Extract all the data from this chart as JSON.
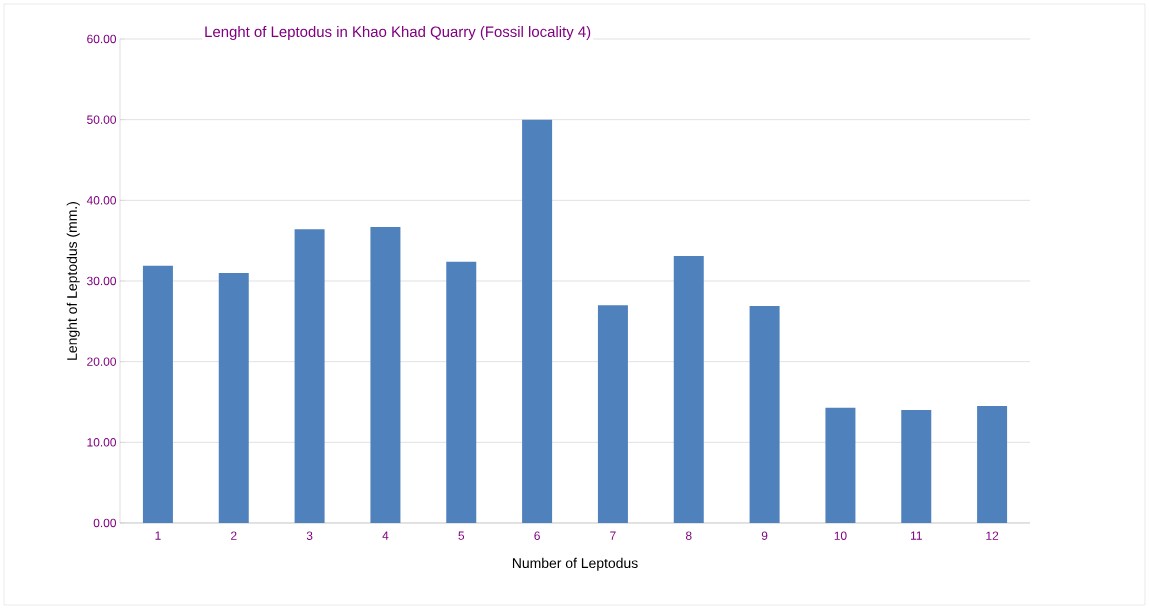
{
  "chart_data": {
    "type": "bar",
    "title": "Lenght of Leptodus in Khao Khad Quarry (Fossil locality 4)",
    "xlabel": "Number of Leptodus",
    "ylabel": "Lenght of Leptodus  (mm.)",
    "categories": [
      "1",
      "2",
      "3",
      "4",
      "5",
      "6",
      "7",
      "8",
      "9",
      "10",
      "11",
      "12"
    ],
    "values": [
      31.9,
      31.0,
      36.4,
      36.7,
      32.4,
      50.0,
      27.0,
      33.1,
      26.9,
      14.3,
      14.0,
      14.5
    ],
    "color": "#4f81bd",
    "ylim": [
      0,
      60
    ],
    "yticks": [
      {
        "value": 0,
        "label": "0.00"
      },
      {
        "value": 10,
        "label": "10.00"
      },
      {
        "value": 20,
        "label": "20.00"
      },
      {
        "value": 30,
        "label": "30.00"
      },
      {
        "value": 40,
        "label": "40.00"
      },
      {
        "value": 50,
        "label": "50.00"
      },
      {
        "value": 60,
        "label": "60.00"
      }
    ],
    "grid": "y"
  }
}
